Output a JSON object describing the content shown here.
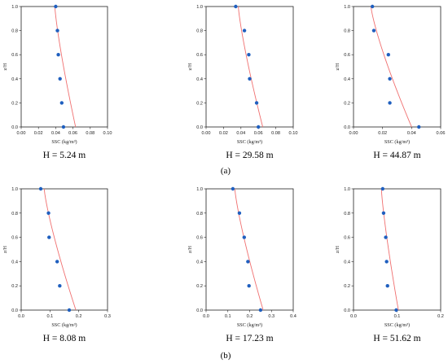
{
  "figure": {
    "row_labels": [
      "(a)",
      "(b)"
    ]
  },
  "style": {
    "point_color": "#1f5fbf",
    "fit_color": "#f07070",
    "axis_color": "#222222"
  },
  "chart_data": [
    {
      "type": "scatter",
      "caption": "H = 5.24 m",
      "xlabel": "SSC (kg/m³)",
      "ylabel": "z/H",
      "xlim": [
        0,
        0.1
      ],
      "ylim": [
        0,
        1.0
      ],
      "xticks": [
        "0.00",
        "0.02",
        "0.04",
        "0.06",
        "0.08",
        "0.10"
      ],
      "yticks": [
        "0.0",
        "0.2",
        "0.4",
        "0.6",
        "0.8",
        "1.0"
      ],
      "points": [
        [
          0.04,
          1.0
        ],
        [
          0.042,
          0.8
        ],
        [
          0.043,
          0.6
        ],
        [
          0.045,
          0.4
        ],
        [
          0.047,
          0.2
        ],
        [
          0.049,
          0.0
        ]
      ],
      "fit": [
        [
          0.039,
          1.0
        ],
        [
          0.063,
          0.0
        ]
      ]
    },
    {
      "type": "scatter",
      "caption": "H = 29.58 m",
      "xlabel": "SSC (kg/m³)",
      "ylabel": "z/H",
      "xlim": [
        0,
        0.1
      ],
      "ylim": [
        0,
        1.0
      ],
      "xticks": [
        "0.00",
        "0.02",
        "0.04",
        "0.06",
        "0.08",
        "0.10"
      ],
      "yticks": [
        "0.0",
        "0.2",
        "0.4",
        "0.6",
        "0.8",
        "1.0"
      ],
      "points": [
        [
          0.034,
          1.0
        ],
        [
          0.044,
          0.8
        ],
        [
          0.049,
          0.6
        ],
        [
          0.05,
          0.4
        ],
        [
          0.058,
          0.2
        ],
        [
          0.06,
          0.0
        ]
      ],
      "fit": [
        [
          0.037,
          1.0
        ],
        [
          0.065,
          0.0
        ]
      ]
    },
    {
      "type": "scatter",
      "caption": "H = 44.87 m",
      "xlabel": "SSC (kg/m³)",
      "ylabel": "z/H",
      "xlim": [
        0,
        0.06
      ],
      "ylim": [
        0,
        1.0
      ],
      "xticks": [
        "0.00",
        "0.02",
        "0.04",
        "0.06"
      ],
      "yticks": [
        "0.0",
        "0.2",
        "0.4",
        "0.6",
        "0.8",
        "1.0"
      ],
      "points": [
        [
          0.013,
          1.0
        ],
        [
          0.014,
          0.8
        ],
        [
          0.024,
          0.6
        ],
        [
          0.025,
          0.4
        ],
        [
          0.025,
          0.2
        ],
        [
          0.045,
          0.0
        ]
      ],
      "fit": [
        [
          0.012,
          1.0
        ],
        [
          0.04,
          0.0
        ]
      ]
    },
    {
      "type": "scatter",
      "caption": "H = 8.08 m",
      "xlabel": "SSC (kg/m³)",
      "ylabel": "z/H",
      "xlim": [
        0,
        0.3
      ],
      "ylim": [
        0,
        1.0
      ],
      "xticks": [
        "0.0",
        "0.1",
        "0.2",
        "0.3"
      ],
      "yticks": [
        "0.0",
        "0.2",
        "0.4",
        "0.6",
        "0.8",
        "1.0"
      ],
      "points": [
        [
          0.068,
          1.0
        ],
        [
          0.095,
          0.8
        ],
        [
          0.097,
          0.6
        ],
        [
          0.125,
          0.4
        ],
        [
          0.134,
          0.2
        ],
        [
          0.167,
          0.0
        ]
      ],
      "fit": [
        [
          0.08,
          1.0
        ],
        [
          0.19,
          0.0
        ]
      ]
    },
    {
      "type": "scatter",
      "caption": "H = 17.23 m",
      "xlabel": "SSC (kg/m³)",
      "ylabel": "z/H",
      "xlim": [
        0,
        0.4
      ],
      "ylim": [
        0,
        1.0
      ],
      "xticks": [
        "0.0",
        "0.1",
        "0.2",
        "0.3",
        "0.4"
      ],
      "yticks": [
        "0.0",
        "0.2",
        "0.4",
        "0.6",
        "0.8",
        "1.0"
      ],
      "points": [
        [
          0.123,
          1.0
        ],
        [
          0.153,
          0.8
        ],
        [
          0.175,
          0.6
        ],
        [
          0.192,
          0.4
        ],
        [
          0.197,
          0.2
        ],
        [
          0.25,
          0.0
        ]
      ],
      "fit": [
        [
          0.132,
          1.0
        ],
        [
          0.262,
          0.0
        ]
      ]
    },
    {
      "type": "scatter",
      "caption": "H = 51.62 m",
      "xlabel": "SSC (kg/m³)",
      "ylabel": "z/H",
      "xlim": [
        0,
        0.2
      ],
      "ylim": [
        0,
        1.0
      ],
      "xticks": [
        "0.0",
        "0.1",
        "0.2"
      ],
      "yticks": [
        "0.0",
        "0.2",
        "0.4",
        "0.6",
        "0.8",
        "1.0"
      ],
      "points": [
        [
          0.067,
          1.0
        ],
        [
          0.069,
          0.8
        ],
        [
          0.074,
          0.6
        ],
        [
          0.076,
          0.4
        ],
        [
          0.078,
          0.2
        ],
        [
          0.098,
          0.0
        ]
      ],
      "fit": [
        [
          0.064,
          1.0
        ],
        [
          0.103,
          0.0
        ]
      ]
    }
  ]
}
